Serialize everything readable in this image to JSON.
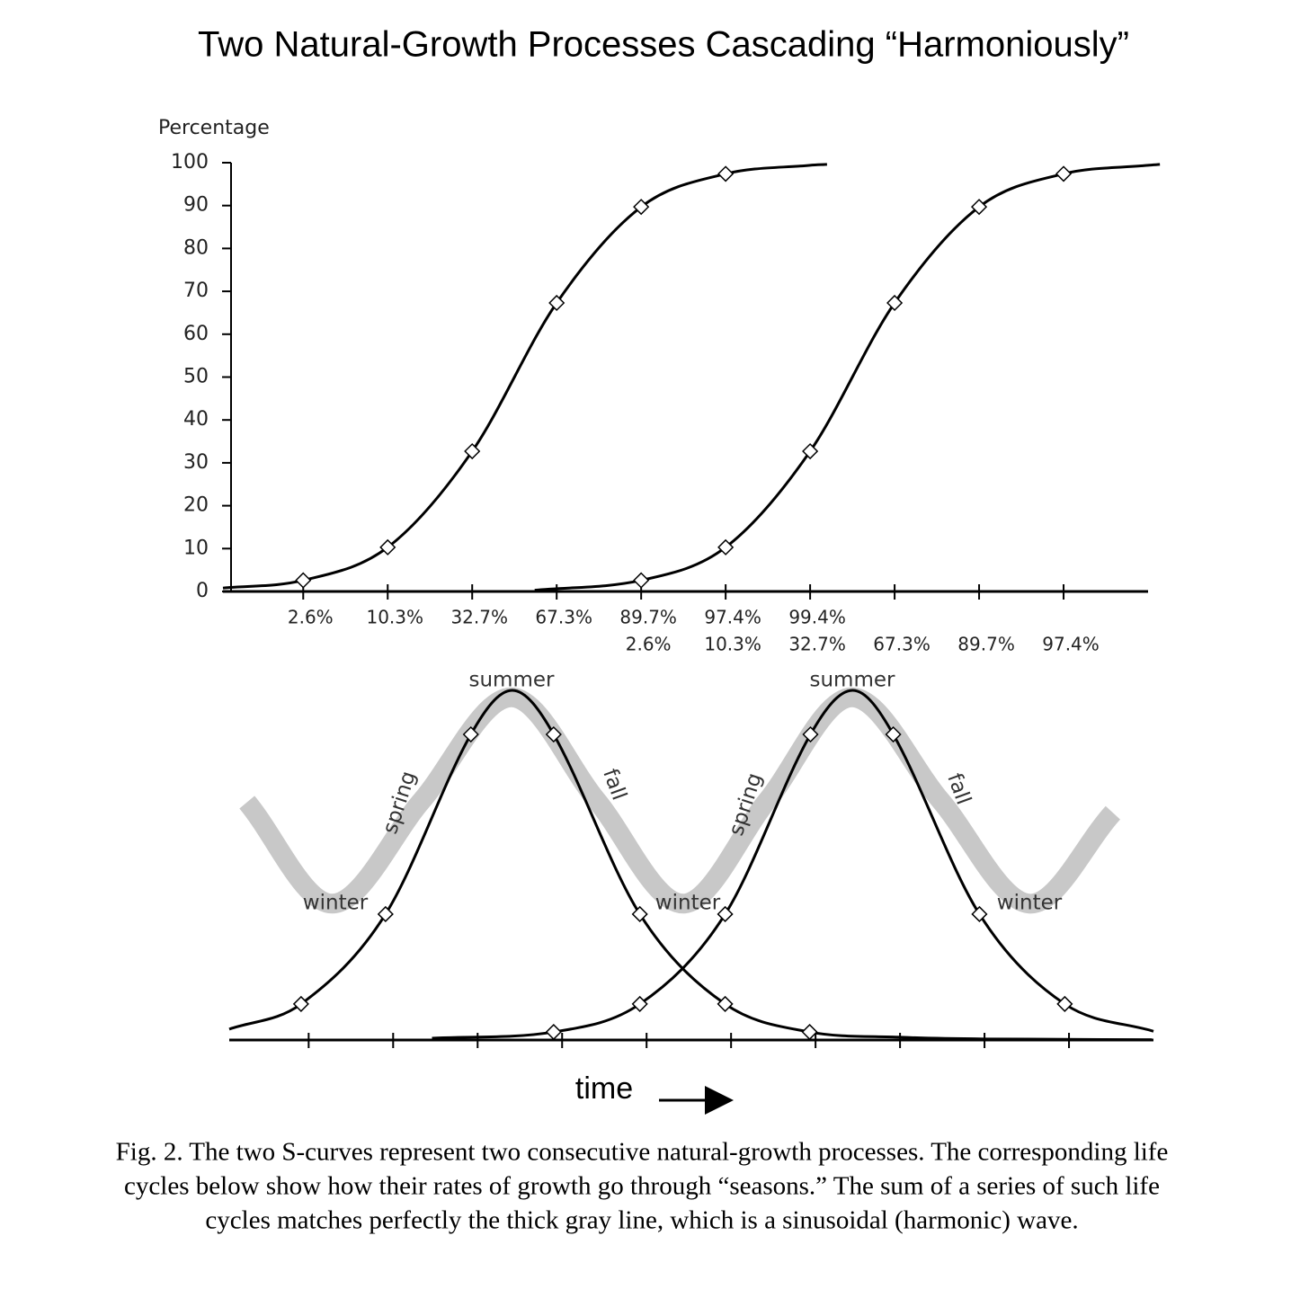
{
  "chart_data": [
    {
      "type": "line",
      "title": "Two Natural-Growth Processes Cascading “Harmoniously”",
      "y_label": "Percentage",
      "xlim": [
        0.05,
        11
      ],
      "ylim": [
        0,
        100
      ],
      "yticks": [
        0,
        10,
        20,
        30,
        40,
        50,
        60,
        70,
        80,
        90,
        100
      ],
      "xticks": [
        1,
        2,
        3,
        4,
        5,
        6,
        7,
        8,
        9,
        10
      ],
      "xtick_labels_row1": [
        "2.6%",
        "10.3%",
        "32.7%",
        "67.3%",
        "89.7%",
        "97.4%",
        "99.4%",
        null,
        null,
        null
      ],
      "xtick_labels_row2": [
        null,
        null,
        null,
        null,
        "2.6%",
        "10.3%",
        "32.7%",
        "67.3%",
        "89.7%",
        "97.4%"
      ],
      "series": [
        {
          "color": "#000000",
          "x": [
            0.05,
            1,
            2,
            3,
            4,
            5,
            6,
            7,
            7.2
          ],
          "values": [
            0.8,
            2.6,
            10.3,
            32.7,
            67.3,
            89.7,
            97.4,
            99.4,
            99.6
          ],
          "markers": [
            false,
            true,
            true,
            true,
            true,
            true,
            true,
            false,
            false
          ]
        },
        {
          "color": "#000000",
          "x": [
            3.74,
            5,
            6,
            7,
            8,
            9,
            10,
            11,
            11.14
          ],
          "values": [
            0.3,
            2.6,
            10.3,
            32.7,
            67.3,
            89.7,
            97.4,
            99.4,
            99.6
          ],
          "markers": [
            false,
            true,
            true,
            true,
            true,
            true,
            true,
            false,
            false
          ]
        }
      ]
    },
    {
      "type": "line",
      "x_label": "time",
      "xlim": [
        0.06,
        11
      ],
      "ylim": [
        0,
        100
      ],
      "xticks": [
        1,
        2,
        3,
        4,
        5,
        6,
        7,
        8,
        9,
        10
      ],
      "series": [
        {
          "color": "#c8c8c8",
          "x": [
            0.27,
            1.28,
            2.34,
            3.4,
            4.41,
            5.43,
            6.43,
            7.43,
            8.48,
            9.53,
            10.52
          ],
          "values": [
            68,
            39,
            68.5,
            98,
            68.5,
            39,
            68.5,
            98,
            68.5,
            39,
            65
          ]
        },
        {
          "color": "#000000",
          "x": [
            0.06,
            0.91,
            1.91,
            2.92,
            3.41,
            3.9,
            4.92,
            5.93,
            6.93,
            8.0,
            9.0,
            10.98
          ],
          "values": [
            3.1,
            10.3,
            36,
            87.4,
            100,
            87.4,
            36,
            10.3,
            2.3,
            0.8,
            0.3,
            0.1
          ],
          "markers": [
            false,
            true,
            true,
            true,
            false,
            true,
            true,
            true,
            true,
            false,
            false,
            false
          ]
        },
        {
          "color": "#000000",
          "x": [
            2.46,
            3.9,
            4.92,
            5.93,
            6.94,
            7.44,
            7.92,
            8.94,
            9.95,
            11.0
          ],
          "values": [
            0.5,
            2.3,
            10.3,
            36,
            87.4,
            100,
            87.4,
            36,
            10.3,
            2.5
          ],
          "markers": [
            false,
            true,
            true,
            true,
            true,
            false,
            true,
            true,
            true,
            false
          ]
        }
      ],
      "annotations": [
        "summer",
        "summer",
        "spring",
        "spring",
        "fall",
        "fall",
        "winter",
        "winter",
        "winter"
      ]
    }
  ],
  "caption": [
    "Fig. 2. The two S-curves represent two consecutive natural-growth processes. The corresponding life",
    "cycles below show how their rates of growth go through “seasons.” The sum of a series of such life",
    "cycles matches perfectly the thick gray line, which is a sinusoidal (harmonic) wave."
  ]
}
